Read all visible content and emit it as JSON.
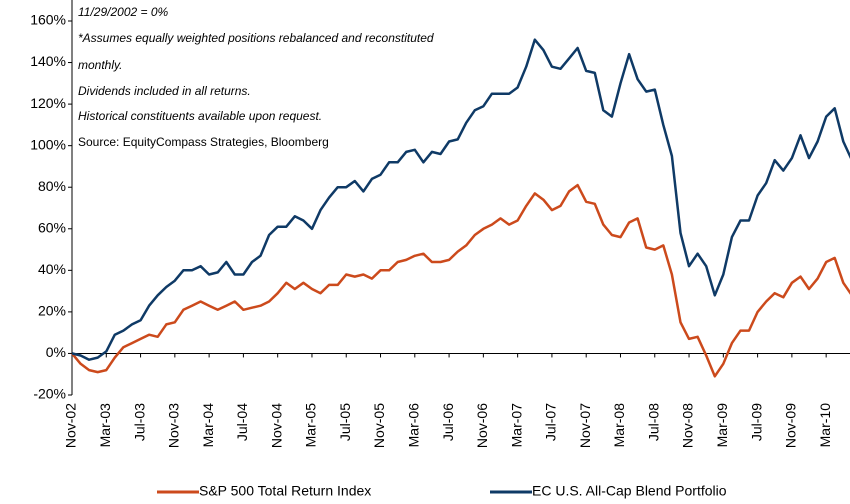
{
  "chart_data": {
    "type": "line",
    "annotations": [
      "11/29/2002 = 0%",
      "*Assumes equally weighted positions rebalanced and reconstituted",
      "monthly.",
      "Dividends included in all returns.",
      "Historical constituents available upon request.",
      "Source: EquityCompass Strategies, Bloomberg"
    ],
    "categories": [
      "Nov-02",
      null,
      null,
      null,
      "Mar-03",
      null,
      null,
      null,
      "Jul-03",
      null,
      null,
      null,
      "Nov-03",
      null,
      null,
      null,
      "Mar-04",
      null,
      null,
      null,
      "Jul-04",
      null,
      null,
      null,
      "Nov-04",
      null,
      null,
      null,
      "Mar-05",
      null,
      null,
      null,
      "Jul-05",
      null,
      null,
      null,
      "Nov-05",
      null,
      null,
      null,
      "Mar-06",
      null,
      null,
      null,
      "Jul-06",
      null,
      null,
      null,
      "Nov-06",
      null,
      null,
      null,
      "Mar-07",
      null,
      null,
      null,
      "Jul-07",
      null,
      null,
      null,
      "Nov-07",
      null,
      null,
      null,
      "Mar-08",
      null,
      null,
      null,
      "Jul-08",
      null,
      null,
      null,
      "Nov-08",
      null,
      null,
      null,
      "Mar-09",
      null,
      null,
      null,
      "Jul-09",
      null,
      null,
      null,
      "Nov-09",
      null,
      null,
      null,
      "Mar-10",
      null,
      null,
      null
    ],
    "series": [
      {
        "name": "S&P 500 Total Return Index",
        "color": "#cc4a1c",
        "values": [
          0,
          -5,
          -8,
          -9,
          -8,
          -2,
          3,
          5,
          7,
          9,
          8,
          14,
          15,
          21,
          23,
          25,
          23,
          21,
          23,
          25,
          21,
          22,
          23,
          25,
          29,
          34,
          31,
          34,
          31,
          29,
          33,
          33,
          38,
          37,
          38,
          36,
          40,
          40,
          44,
          45,
          47,
          48,
          44,
          44,
          45,
          49,
          52,
          57,
          60,
          62,
          65,
          62,
          64,
          71,
          77,
          74,
          69,
          71,
          78,
          81,
          73,
          72,
          62,
          57,
          56,
          63,
          65,
          51,
          50,
          52,
          38,
          15,
          7,
          8,
          -1,
          -11,
          -5,
          5,
          11,
          11,
          20,
          25,
          29,
          27,
          34,
          37,
          31,
          36,
          44,
          46,
          34,
          28
        ]
      },
      {
        "name": "EC U.S. All-Cap Blend Portfolio",
        "color": "#0f3a66",
        "values": [
          0,
          -1,
          -3,
          -2,
          1,
          9,
          11,
          14,
          16,
          23,
          28,
          32,
          35,
          40,
          40,
          42,
          38,
          39,
          44,
          38,
          38,
          44,
          47,
          57,
          61,
          61,
          66,
          64,
          60,
          69,
          75,
          80,
          80,
          83,
          78,
          84,
          86,
          92,
          92,
          97,
          98,
          92,
          97,
          96,
          102,
          103,
          111,
          117,
          119,
          125,
          125,
          125,
          128,
          138,
          151,
          146,
          138,
          137,
          142,
          147,
          136,
          135,
          117,
          114,
          130,
          144,
          132,
          126,
          127,
          110,
          95,
          58,
          42,
          48,
          42,
          28,
          38,
          56,
          64,
          64,
          76,
          82,
          93,
          88,
          94,
          105,
          94,
          102,
          114,
          118,
          102,
          93
        ]
      }
    ],
    "ylim": [
      -20,
      165
    ],
    "yticks": [
      {
        "value": -20,
        "label": "-20%"
      },
      {
        "value": 0,
        "label": "0%"
      },
      {
        "value": 20,
        "label": "20%"
      },
      {
        "value": 40,
        "label": "40%"
      },
      {
        "value": 60,
        "label": "60%"
      },
      {
        "value": 80,
        "label": "80%"
      },
      {
        "value": 100,
        "label": "100%"
      },
      {
        "value": 120,
        "label": "120%"
      },
      {
        "value": 140,
        "label": "140%"
      },
      {
        "value": 160,
        "label": "160%"
      }
    ],
    "grid": false,
    "legend": "bottom"
  }
}
